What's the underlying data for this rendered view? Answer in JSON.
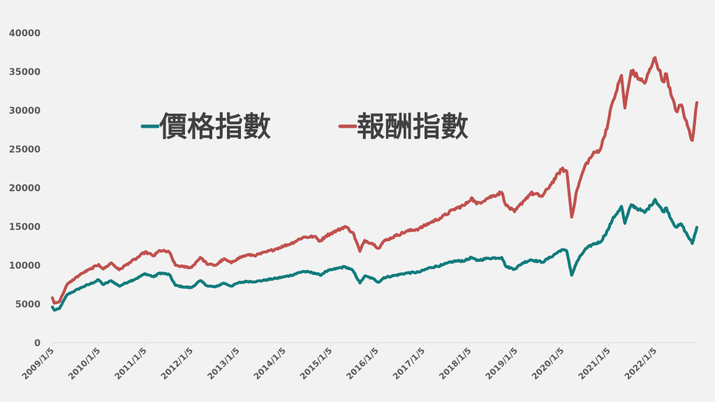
{
  "chart_data": {
    "type": "line",
    "title": "",
    "xlabel": "",
    "ylabel": "",
    "ylim": [
      0,
      40000
    ],
    "y_ticks": [
      "0",
      "5000",
      "10000",
      "15000",
      "20000",
      "25000",
      "30000",
      "35000",
      "40000"
    ],
    "x_ticks": [
      "2009/1/5",
      "2010/1/5",
      "2011/1/5",
      "2012/1/5",
      "2013/1/5",
      "2014/1/5",
      "2015/1/5",
      "2016/1/5",
      "2017/1/5",
      "2018/1/5",
      "2019/1/5",
      "2020/1/5",
      "2021/1/5",
      "2022/1/5"
    ],
    "grid": false,
    "legend_position": "top-left",
    "x_range": [
      "2009/1/5",
      "2022/11/30"
    ],
    "series": [
      {
        "name": "價格指數",
        "color": "#117b7b",
        "points": [
          [
            "2009/1/5",
            4600
          ],
          [
            "2009/1/20",
            4200
          ],
          [
            "2009/3/1",
            4400
          ],
          [
            "2009/5/1",
            6200
          ],
          [
            "2009/7/1",
            6700
          ],
          [
            "2009/9/1",
            7200
          ],
          [
            "2009/11/1",
            7600
          ],
          [
            "2010/1/5",
            8100
          ],
          [
            "2010/2/10",
            7500
          ],
          [
            "2010/4/15",
            8000
          ],
          [
            "2010/6/15",
            7300
          ],
          [
            "2010/9/1",
            7900
          ],
          [
            "2010/11/1",
            8300
          ],
          [
            "2011/1/5",
            8900
          ],
          [
            "2011/3/15",
            8500
          ],
          [
            "2011/5/1",
            9000
          ],
          [
            "2011/7/15",
            8800
          ],
          [
            "2011/9/1",
            7400
          ],
          [
            "2011/11/1",
            7200
          ],
          [
            "2012/1/5",
            7100
          ],
          [
            "2012/3/15",
            8000
          ],
          [
            "2012/5/15",
            7300
          ],
          [
            "2012/7/15",
            7200
          ],
          [
            "2012/9/15",
            7700
          ],
          [
            "2012/11/15",
            7300
          ],
          [
            "2013/1/5",
            7700
          ],
          [
            "2013/3/15",
            7900
          ],
          [
            "2013/6/1",
            7900
          ],
          [
            "2013/8/15",
            8100
          ],
          [
            "2013/11/1",
            8300
          ],
          [
            "2014/1/5",
            8500
          ],
          [
            "2014/3/1",
            8700
          ],
          [
            "2014/6/1",
            9200
          ],
          [
            "2014/9/1",
            9000
          ],
          [
            "2014/10/15",
            8700
          ],
          [
            "2014/12/1",
            9200
          ],
          [
            "2015/3/1",
            9600
          ],
          [
            "2015/5/1",
            9800
          ],
          [
            "2015/7/1",
            9300
          ],
          [
            "2015/8/25",
            7700
          ],
          [
            "2015/10/1",
            8600
          ],
          [
            "2015/12/1",
            8300
          ],
          [
            "2016/1/20",
            7800
          ],
          [
            "2016/3/1",
            8400
          ],
          [
            "2016/6/1",
            8700
          ],
          [
            "2016/9/1",
            9000
          ],
          [
            "2016/12/1",
            9100
          ],
          [
            "2017/3/1",
            9700
          ],
          [
            "2017/6/1",
            10000
          ],
          [
            "2017/9/1",
            10500
          ],
          [
            "2017/12/1",
            10600
          ],
          [
            "2018/1/20",
            11000
          ],
          [
            "2018/3/1",
            10600
          ],
          [
            "2018/6/1",
            10900
          ],
          [
            "2018/9/15",
            11000
          ],
          [
            "2018/10/20",
            9800
          ],
          [
            "2018/12/25",
            9500
          ],
          [
            "2019/3/1",
            10300
          ],
          [
            "2019/5/1",
            10700
          ],
          [
            "2019/8/1",
            10400
          ],
          [
            "2019/10/1",
            11000
          ],
          [
            "2019/12/31",
            12000
          ],
          [
            "2020/2/10",
            11800
          ],
          [
            "2020/3/19",
            8700
          ],
          [
            "2020/5/1",
            10500
          ],
          [
            "2020/7/1",
            12000
          ],
          [
            "2020/9/1",
            12700
          ],
          [
            "2020/11/1",
            13000
          ],
          [
            "2020/12/31",
            14600
          ],
          [
            "2021/2/1",
            15800
          ],
          [
            "2021/3/1",
            16500
          ],
          [
            "2021/4/15",
            17600
          ],
          [
            "2021/5/12",
            15400
          ],
          [
            "2021/7/1",
            17800
          ],
          [
            "2021/9/1",
            17200
          ],
          [
            "2021/10/15",
            16800
          ],
          [
            "2021/12/1",
            17700
          ],
          [
            "2022/1/5",
            18500
          ],
          [
            "2022/3/8",
            16900
          ],
          [
            "2022/4/5",
            17400
          ],
          [
            "2022/5/10",
            16000
          ],
          [
            "2022/6/20",
            14900
          ],
          [
            "2022/8/1",
            15300
          ],
          [
            "2022/9/1",
            14300
          ],
          [
            "2022/10/25",
            12800
          ],
          [
            "2022/11/30",
            14900
          ]
        ]
      },
      {
        "name": "報酬指數",
        "color": "#c0504d",
        "points": [
          [
            "2009/1/5",
            5800
          ],
          [
            "2009/1/20",
            5100
          ],
          [
            "2009/3/1",
            5300
          ],
          [
            "2009/5/1",
            7500
          ],
          [
            "2009/7/1",
            8300
          ],
          [
            "2009/9/1",
            9000
          ],
          [
            "2009/11/1",
            9500
          ],
          [
            "2010/1/5",
            10100
          ],
          [
            "2010/2/10",
            9500
          ],
          [
            "2010/4/15",
            10300
          ],
          [
            "2010/6/15",
            9400
          ],
          [
            "2010/9/1",
            10300
          ],
          [
            "2010/11/1",
            10900
          ],
          [
            "2011/1/5",
            11700
          ],
          [
            "2011/3/15",
            11200
          ],
          [
            "2011/5/1",
            11900
          ],
          [
            "2011/7/15",
            11700
          ],
          [
            "2011/9/1",
            10000
          ],
          [
            "2011/11/1",
            9800
          ],
          [
            "2012/1/5",
            9700
          ],
          [
            "2012/3/15",
            11000
          ],
          [
            "2012/5/15",
            10100
          ],
          [
            "2012/7/15",
            10000
          ],
          [
            "2012/9/15",
            10800
          ],
          [
            "2012/11/15",
            10300
          ],
          [
            "2013/1/5",
            10900
          ],
          [
            "2013/3/15",
            11300
          ],
          [
            "2013/6/1",
            11300
          ],
          [
            "2013/8/15",
            11700
          ],
          [
            "2013/11/1",
            12100
          ],
          [
            "2014/1/5",
            12500
          ],
          [
            "2014/3/1",
            12800
          ],
          [
            "2014/6/1",
            13600
          ],
          [
            "2014/9/1",
            13700
          ],
          [
            "2014/10/15",
            13100
          ],
          [
            "2014/12/1",
            13800
          ],
          [
            "2015/3/1",
            14500
          ],
          [
            "2015/5/1",
            15000
          ],
          [
            "2015/7/1",
            14200
          ],
          [
            "2015/8/25",
            11800
          ],
          [
            "2015/10/1",
            13200
          ],
          [
            "2015/12/1",
            12800
          ],
          [
            "2016/1/20",
            12200
          ],
          [
            "2016/3/1",
            13100
          ],
          [
            "2016/6/1",
            13800
          ],
          [
            "2016/9/1",
            14400
          ],
          [
            "2016/12/1",
            14700
          ],
          [
            "2017/3/1",
            15500
          ],
          [
            "2017/6/1",
            16200
          ],
          [
            "2017/9/1",
            17200
          ],
          [
            "2017/12/1",
            17800
          ],
          [
            "2018/1/20",
            18700
          ],
          [
            "2018/3/1",
            17900
          ],
          [
            "2018/6/1",
            18700
          ],
          [
            "2018/9/15",
            19400
          ],
          [
            "2018/10/20",
            17700
          ],
          [
            "2018/12/25",
            16900
          ],
          [
            "2019/3/1",
            18200
          ],
          [
            "2019/5/1",
            19300
          ],
          [
            "2019/8/1",
            18900
          ],
          [
            "2019/10/1",
            20300
          ],
          [
            "2019/12/31",
            22400
          ],
          [
            "2020/2/10",
            22100
          ],
          [
            "2020/3/19",
            16200
          ],
          [
            "2020/5/1",
            19800
          ],
          [
            "2020/7/1",
            22800
          ],
          [
            "2020/9/1",
            24300
          ],
          [
            "2020/11/1",
            25000
          ],
          [
            "2020/12/31",
            28400
          ],
          [
            "2021/2/1",
            30900
          ],
          [
            "2021/3/1",
            32200
          ],
          [
            "2021/4/15",
            34500
          ],
          [
            "2021/5/12",
            30300
          ],
          [
            "2021/7/1",
            35100
          ],
          [
            "2021/9/1",
            34100
          ],
          [
            "2021/10/15",
            33500
          ],
          [
            "2021/12/1",
            35400
          ],
          [
            "2022/1/5",
            36800
          ],
          [
            "2022/3/8",
            33700
          ],
          [
            "2022/4/5",
            34700
          ],
          [
            "2022/5/10",
            32000
          ],
          [
            "2022/6/20",
            29900
          ],
          [
            "2022/8/1",
            30700
          ],
          [
            "2022/9/1",
            28800
          ],
          [
            "2022/10/25",
            26100
          ],
          [
            "2022/11/30",
            31000
          ]
        ]
      }
    ]
  }
}
